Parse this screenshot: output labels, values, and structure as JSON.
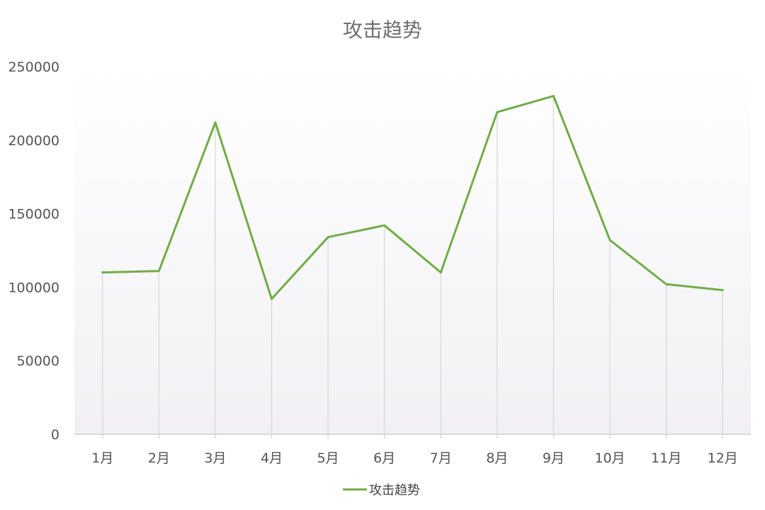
{
  "chart_data": {
    "type": "line",
    "title": "攻击趋势",
    "categories": [
      "1月",
      "2月",
      "3月",
      "4月",
      "5月",
      "6月",
      "7月",
      "8月",
      "9月",
      "10月",
      "11月",
      "12月"
    ],
    "series": [
      {
        "name": "攻击趋势",
        "color": "#70ad47",
        "values": [
          110000,
          111000,
          212000,
          92000,
          134000,
          142000,
          110000,
          219000,
          230000,
          132000,
          102000,
          98000
        ]
      }
    ],
    "ylim": [
      0,
      250000
    ],
    "yticks": [
      "0",
      "50000",
      "100000",
      "150000",
      "200000",
      "250000"
    ],
    "grid": "vertical drop lines",
    "legend_position": "bottom"
  }
}
